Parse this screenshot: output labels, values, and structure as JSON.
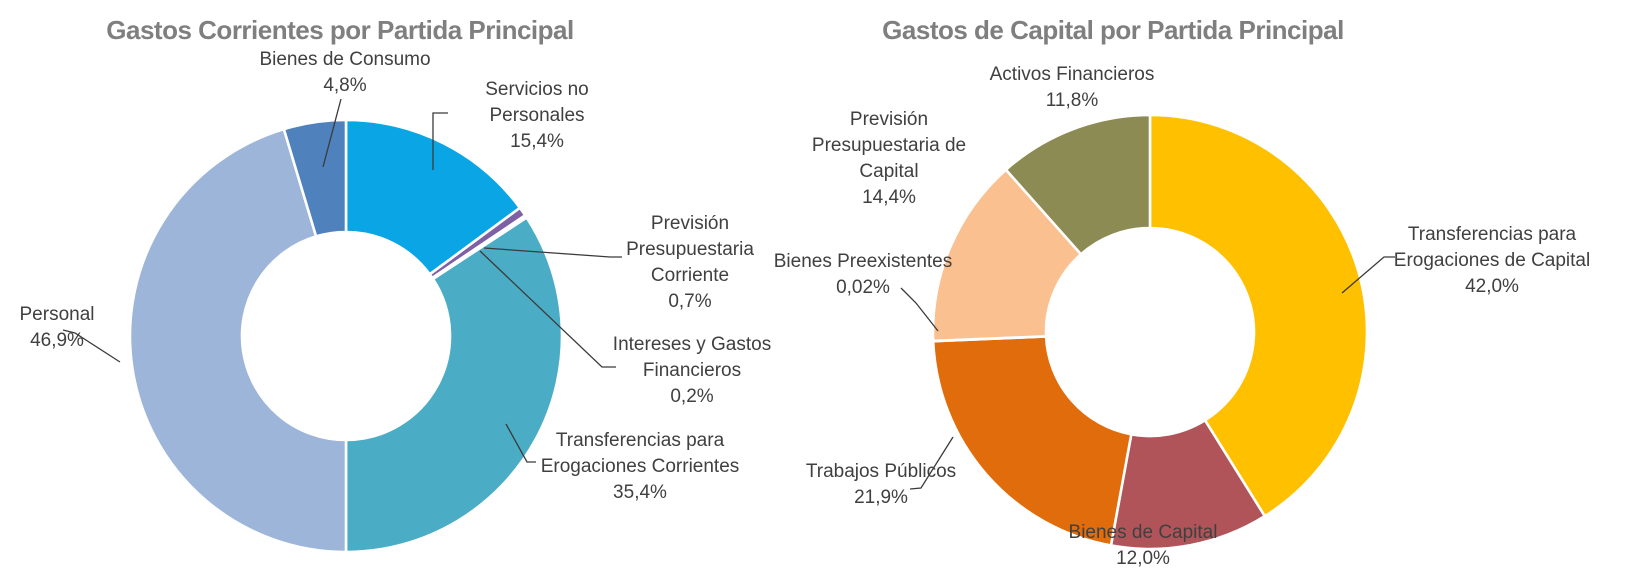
{
  "chart_data": [
    {
      "type": "pie",
      "subtype": "donut",
      "title": "Gastos Corrientes por Partida Principal",
      "legend": "none",
      "grid": false,
      "start_angle": "12 o'clock",
      "direction": "clockwise",
      "data_labels": "category and percentage outside slices with leader lines",
      "categories": [
        "Servicios no Personales",
        "Previsión Presupuestaria Corriente",
        "Intereses y Gastos Financieros",
        "Transferencias para Erogaciones Corrientes",
        "Personal",
        "Bienes de Consumo"
      ],
      "values": [
        15.4,
        0.7,
        0.2,
        35.4,
        46.9,
        4.8
      ],
      "series": [
        {
          "name": "Gastos Corrientes",
          "points": [
            {
              "category": "Servicios no Personales",
              "value": 15.4,
              "pct_label": "15,4%",
              "color": "#0AA5E4",
              "label_lines": [
                "Servicios no",
                "Personales",
                "15,4%"
              ]
            },
            {
              "category": "Previsión Presupuestaria Corriente",
              "value": 0.7,
              "pct_label": "0,7%",
              "color": "#7D61A4",
              "label_lines": [
                "Previsión",
                "Presupuestaria",
                "Corriente",
                "0,7%"
              ]
            },
            {
              "category": "Intereses y Gastos Financieros",
              "value": 0.2,
              "pct_label": "0,2%",
              "color": "#604A7B",
              "label_lines": [
                "Intereses y Gastos",
                "Financieros",
                "0,2%"
              ]
            },
            {
              "category": "Transferencias para Erogaciones Corrientes",
              "value": 35.4,
              "pct_label": "35,4%",
              "color": "#4AACC5",
              "label_lines": [
                "Transferencias para",
                "Erogaciones Corrientes",
                "35,4%"
              ]
            },
            {
              "category": "Personal",
              "value": 46.9,
              "pct_label": "46,9%",
              "color": "#9CB5D9",
              "label_lines": [
                "Personal",
                "46,9%"
              ]
            },
            {
              "category": "Bienes de Consumo",
              "value": 4.8,
              "pct_label": "4,8%",
              "color": "#4F81BD",
              "label_lines": [
                "Bienes de Consumo",
                "4,8%"
              ]
            }
          ]
        }
      ]
    },
    {
      "type": "pie",
      "subtype": "donut",
      "title": "Gastos de Capital por Partida Principal",
      "legend": "none",
      "grid": false,
      "start_angle": "12 o'clock",
      "direction": "clockwise",
      "data_labels": "category and percentage outside slices with leader lines",
      "categories": [
        "Transferencias para Erogaciones de Capital",
        "Bienes de Capital",
        "Trabajos Públicos",
        "Bienes Preexistentes",
        "Previsión Presupuestaria de Capital",
        "Activos Financieros"
      ],
      "values": [
        42.0,
        12.0,
        21.9,
        0.02,
        14.4,
        11.8
      ],
      "series": [
        {
          "name": "Gastos de Capital",
          "points": [
            {
              "category": "Transferencias para Erogaciones de Capital",
              "value": 42.0,
              "pct_label": "42,0%",
              "color": "#FFC000",
              "label_lines": [
                "Transferencias para",
                "Erogaciones de Capital",
                "42,0%"
              ]
            },
            {
              "category": "Bienes de Capital",
              "value": 12.0,
              "pct_label": "12,0%",
              "color": "#B15459",
              "label_lines": [
                "Bienes de Capital",
                "12,0%"
              ]
            },
            {
              "category": "Trabajos Públicos",
              "value": 21.9,
              "pct_label": "21,9%",
              "color": "#E16C0C",
              "label_lines": [
                "Trabajos Públicos",
                "21,9%"
              ]
            },
            {
              "category": "Bienes Preexistentes",
              "value": 0.02,
              "pct_label": "0,02%",
              "color": "#C4BD97",
              "label_lines": [
                "Bienes Preexistentes",
                "0,02%"
              ]
            },
            {
              "category": "Previsión Presupuestaria de Capital",
              "value": 14.4,
              "pct_label": "14,4%",
              "color": "#FAC090",
              "label_lines": [
                "Previsión",
                "Presupuestaria de",
                "Capital",
                "14,4%"
              ]
            },
            {
              "category": "Activos Financieros",
              "value": 11.8,
              "pct_label": "11,8%",
              "color": "#8C8B53",
              "label_lines": [
                "Activos Financieros",
                "11,8%"
              ]
            }
          ]
        }
      ]
    }
  ],
  "style": {
    "background": "#FFFFFF",
    "title_color": "#7F7F7F",
    "label_color": "#404040",
    "leader_line_color": "#3B3B3B",
    "slice_border_color": "#FFFFFF"
  }
}
